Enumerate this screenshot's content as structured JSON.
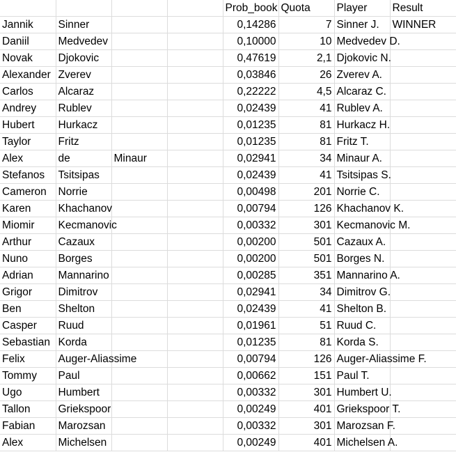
{
  "header": {
    "prob_book": "Prob_book",
    "quota": "Quota",
    "player": "Player",
    "result": "Result"
  },
  "rows": [
    {
      "first": "Jannik",
      "last": "Sinner",
      "extra": "",
      "prob": "0,14286",
      "quota": "7",
      "player": "Sinner J.",
      "result": "WINNER"
    },
    {
      "first": "Daniil",
      "last": "Medvedev",
      "extra": "",
      "prob": "0,10000",
      "quota": "10",
      "player": "Medvedev D.",
      "result": ""
    },
    {
      "first": "Novak",
      "last": "Djokovic",
      "extra": "",
      "prob": "0,47619",
      "quota": "2,1",
      "player": "Djokovic N.",
      "result": ""
    },
    {
      "first": "Alexander",
      "last": "Zverev",
      "extra": "",
      "prob": "0,03846",
      "quota": "26",
      "player": "Zverev A.",
      "result": ""
    },
    {
      "first": "Carlos",
      "last": "Alcaraz",
      "extra": "",
      "prob": "0,22222",
      "quota": "4,5",
      "player": "Alcaraz C.",
      "result": ""
    },
    {
      "first": "Andrey",
      "last": "Rublev",
      "extra": "",
      "prob": "0,02439",
      "quota": "41",
      "player": "Rublev A.",
      "result": ""
    },
    {
      "first": "Hubert",
      "last": "Hurkacz",
      "extra": "",
      "prob": "0,01235",
      "quota": "81",
      "player": "Hurkacz H.",
      "result": ""
    },
    {
      "first": "Taylor",
      "last": "Fritz",
      "extra": "",
      "prob": "0,01235",
      "quota": "81",
      "player": "Fritz T.",
      "result": ""
    },
    {
      "first": "Alex",
      "last": "de",
      "extra": "Minaur",
      "prob": "0,02941",
      "quota": "34",
      "player": "Minaur A.",
      "result": ""
    },
    {
      "first": "Stefanos",
      "last": "Tsitsipas",
      "extra": "",
      "prob": "0,02439",
      "quota": "41",
      "player": "Tsitsipas S.",
      "result": ""
    },
    {
      "first": "Cameron",
      "last": "Norrie",
      "extra": "",
      "prob": "0,00498",
      "quota": "201",
      "player": "Norrie C.",
      "result": ""
    },
    {
      "first": "Karen",
      "last": "Khachanov",
      "extra": "",
      "prob": "0,00794",
      "quota": "126",
      "player": "Khachanov K.",
      "result": ""
    },
    {
      "first": "Miomir",
      "last": "Kecmanovic",
      "extra": "",
      "prob": "0,00332",
      "quota": "301",
      "player": "Kecmanovic M.",
      "result": ""
    },
    {
      "first": "Arthur",
      "last": "Cazaux",
      "extra": "",
      "prob": "0,00200",
      "quota": "501",
      "player": "Cazaux A.",
      "result": ""
    },
    {
      "first": "Nuno",
      "last": "Borges",
      "extra": "",
      "prob": "0,00200",
      "quota": "501",
      "player": "Borges N.",
      "result": ""
    },
    {
      "first": "Adrian",
      "last": "Mannarino",
      "extra": "",
      "prob": "0,00285",
      "quota": "351",
      "player": "Mannarino A.",
      "result": ""
    },
    {
      "first": "Grigor",
      "last": "Dimitrov",
      "extra": "",
      "prob": "0,02941",
      "quota": "34",
      "player": "Dimitrov G.",
      "result": ""
    },
    {
      "first": "Ben",
      "last": "Shelton",
      "extra": "",
      "prob": "0,02439",
      "quota": "41",
      "player": "Shelton B.",
      "result": ""
    },
    {
      "first": "Casper",
      "last": "Ruud",
      "extra": "",
      "prob": "0,01961",
      "quota": "51",
      "player": "Ruud C.",
      "result": ""
    },
    {
      "first": "Sebastian",
      "last": "Korda",
      "extra": "",
      "prob": "0,01235",
      "quota": "81",
      "player": "Korda S.",
      "result": ""
    },
    {
      "first": "Felix",
      "last": "Auger-Aliassime",
      "extra": "",
      "prob": "0,00794",
      "quota": "126",
      "player": "Auger-Aliassime F.",
      "result": ""
    },
    {
      "first": "Tommy",
      "last": "Paul",
      "extra": "",
      "prob": "0,00662",
      "quota": "151",
      "player": "Paul T.",
      "result": ""
    },
    {
      "first": "Ugo",
      "last": "Humbert",
      "extra": "",
      "prob": "0,00332",
      "quota": "301",
      "player": "Humbert U.",
      "result": ""
    },
    {
      "first": "Tallon",
      "last": "Griekspoor",
      "extra": "",
      "prob": "0,00249",
      "quota": "401",
      "player": "Griekspoor T.",
      "result": ""
    },
    {
      "first": "Fabian",
      "last": "Marozsan",
      "extra": "",
      "prob": "0,00332",
      "quota": "301",
      "player": "Marozsan F.",
      "result": ""
    },
    {
      "first": "Alex",
      "last": "Michelsen",
      "extra": "",
      "prob": "0,00249",
      "quota": "401",
      "player": "Michelsen A.",
      "result": ""
    }
  ]
}
